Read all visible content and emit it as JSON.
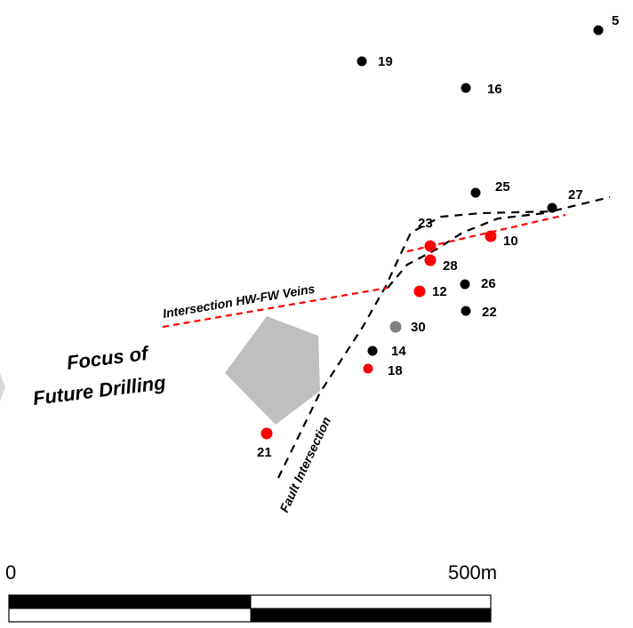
{
  "colors": {
    "hole_black": "#000000",
    "hole_red": "#ff0000",
    "hole_grey": "#808080",
    "fault_line": "#000000",
    "vein_line": "#ff0000",
    "arrow_fill": "#bfbfbf"
  },
  "drill_holes": [
    {
      "id": "5",
      "color": "black"
    },
    {
      "id": "19",
      "color": "black"
    },
    {
      "id": "16",
      "color": "black"
    },
    {
      "id": "25",
      "color": "black"
    },
    {
      "id": "27",
      "color": "black"
    },
    {
      "id": "23",
      "color": "red"
    },
    {
      "id": "10",
      "color": "red"
    },
    {
      "id": "28",
      "color": "red"
    },
    {
      "id": "26",
      "color": "black"
    },
    {
      "id": "12",
      "color": "red"
    },
    {
      "id": "22",
      "color": "black"
    },
    {
      "id": "30",
      "color": "grey"
    },
    {
      "id": "14",
      "color": "black"
    },
    {
      "id": "18",
      "color": "red"
    },
    {
      "id": "21",
      "color": "red"
    }
  ],
  "labels": {
    "vein_intersection": "Intersection HW-FW Veins",
    "fault_intersection": "Fault Intersection",
    "focus_line1": "Focus of",
    "focus_line2": "Future Drilling"
  },
  "scale_bar": {
    "start_label": "0",
    "end_label": "500m"
  }
}
